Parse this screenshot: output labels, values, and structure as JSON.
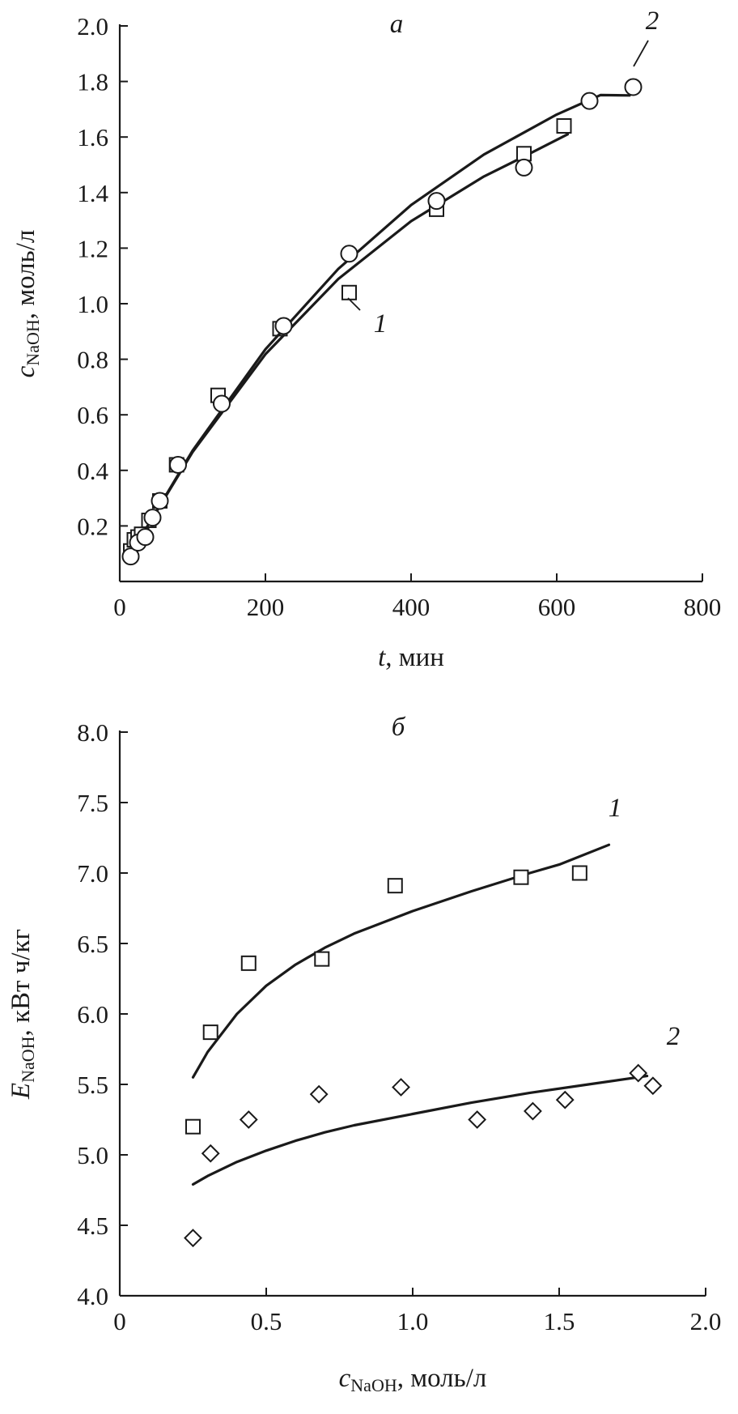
{
  "chart_data": [
    {
      "type": "scatter",
      "panel_label": "а",
      "xlabel": {
        "main": "t",
        "rest": ", мин"
      },
      "ylabel": {
        "main": "c",
        "sub": "NaOH",
        "rest": ", моль/л"
      },
      "xlim": [
        0,
        800
      ],
      "ylim": [
        0,
        2.0
      ],
      "x_ticks": [
        0,
        200,
        400,
        600,
        800
      ],
      "y_ticks": [
        0.2,
        0.4,
        0.6,
        0.8,
        1.0,
        1.2,
        1.4,
        1.6,
        1.8,
        2.0
      ],
      "x_tick_labels": [
        "0",
        "200",
        "400",
        "600",
        "800"
      ],
      "y_tick_labels": [
        "0.2",
        "0.4",
        "0.6",
        "0.8",
        "1.0",
        "1.2",
        "1.4",
        "1.6",
        "1.8",
        "2.0"
      ],
      "grid": false,
      "series": [
        {
          "name": "1",
          "marker": "square",
          "points": [
            [
              15,
              0.11
            ],
            [
              20,
              0.15
            ],
            [
              25,
              0.16
            ],
            [
              30,
              0.17
            ],
            [
              40,
              0.22
            ],
            [
              55,
              0.29
            ],
            [
              78,
              0.42
            ],
            [
              135,
              0.67
            ],
            [
              220,
              0.91
            ],
            [
              315,
              1.04
            ],
            [
              435,
              1.34
            ],
            [
              555,
              1.54
            ],
            [
              610,
              1.64
            ]
          ],
          "fit": [
            [
              20,
              0.12
            ],
            [
              100,
              0.466
            ],
            [
              200,
              0.818
            ],
            [
              300,
              1.089
            ],
            [
              400,
              1.297
            ],
            [
              500,
              1.458
            ],
            [
              550,
              1.523
            ],
            [
              615,
              1.61
            ]
          ]
        },
        {
          "name": "2",
          "marker": "circle",
          "points": [
            [
              15,
              0.09
            ],
            [
              25,
              0.14
            ],
            [
              35,
              0.16
            ],
            [
              45,
              0.23
            ],
            [
              55,
              0.29
            ],
            [
              80,
              0.42
            ],
            [
              140,
              0.64
            ],
            [
              225,
              0.92
            ],
            [
              315,
              1.18
            ],
            [
              435,
              1.37
            ],
            [
              555,
              1.49
            ],
            [
              645,
              1.73
            ],
            [
              705,
              1.78
            ]
          ],
          "fit": [
            [
              20,
              0.12
            ],
            [
              100,
              0.471
            ],
            [
              200,
              0.836
            ],
            [
              300,
              1.125
            ],
            [
              400,
              1.355
            ],
            [
              500,
              1.537
            ],
            [
              600,
              1.681
            ],
            [
              660,
              1.751
            ],
            [
              700,
              1.75
            ]
          ]
        }
      ],
      "annotations": [
        {
          "text": "1",
          "series": "1"
        },
        {
          "text": "2",
          "series": "2"
        }
      ]
    },
    {
      "type": "scatter",
      "panel_label": "б",
      "xlabel": {
        "main": "c",
        "sub": "NaOH",
        "rest": ", моль/л"
      },
      "ylabel": {
        "main": "E",
        "sub": "NaOH",
        "rest": ", кВт ч/кг"
      },
      "xlim": [
        0,
        2.0
      ],
      "ylim": [
        4.0,
        8.0
      ],
      "x_ticks": [
        0,
        0.5,
        1.0,
        1.5,
        2.0
      ],
      "y_ticks": [
        4.0,
        4.5,
        5.0,
        5.5,
        6.0,
        6.5,
        7.0,
        7.5,
        8.0
      ],
      "x_tick_labels": [
        "0",
        "0.5",
        "1.0",
        "1.5",
        "2.0"
      ],
      "y_tick_labels": [
        "4.0",
        "4.5",
        "5.0",
        "5.5",
        "6.0",
        "6.5",
        "7.0",
        "7.5",
        "8.0"
      ],
      "grid": false,
      "series": [
        {
          "name": "1",
          "marker": "square",
          "points": [
            [
              0.25,
              5.2
            ],
            [
              0.31,
              5.87
            ],
            [
              0.44,
              6.36
            ],
            [
              0.69,
              6.39
            ],
            [
              0.94,
              6.91
            ],
            [
              1.37,
              6.97
            ],
            [
              1.57,
              7.0
            ]
          ],
          "fit": [
            [
              0.25,
              5.55
            ],
            [
              0.3,
              5.73
            ],
            [
              0.4,
              6.0
            ],
            [
              0.5,
              6.2
            ],
            [
              0.6,
              6.35
            ],
            [
              0.7,
              6.47
            ],
            [
              0.8,
              6.57
            ],
            [
              0.9,
              6.65
            ],
            [
              1.0,
              6.73
            ],
            [
              1.2,
              6.87
            ],
            [
              1.4,
              7.0
            ],
            [
              1.5,
              7.06
            ],
            [
              1.67,
              7.2
            ]
          ]
        },
        {
          "name": "2",
          "marker": "diamond",
          "points": [
            [
              0.25,
              4.41
            ],
            [
              0.31,
              5.01
            ],
            [
              0.44,
              5.25
            ],
            [
              0.68,
              5.43
            ],
            [
              0.96,
              5.48
            ],
            [
              1.22,
              5.25
            ],
            [
              1.41,
              5.31
            ],
            [
              1.52,
              5.39
            ],
            [
              1.77,
              5.58
            ],
            [
              1.82,
              5.49
            ]
          ],
          "fit": [
            [
              0.25,
              4.79
            ],
            [
              0.3,
              4.85
            ],
            [
              0.4,
              4.95
            ],
            [
              0.5,
              5.03
            ],
            [
              0.6,
              5.1
            ],
            [
              0.7,
              5.16
            ],
            [
              0.8,
              5.21
            ],
            [
              1.0,
              5.29
            ],
            [
              1.2,
              5.37
            ],
            [
              1.4,
              5.44
            ],
            [
              1.6,
              5.5
            ],
            [
              1.8,
              5.56
            ]
          ]
        }
      ],
      "annotations": [
        {
          "text": "1",
          "series": "1"
        },
        {
          "text": "2",
          "series": "2"
        }
      ]
    }
  ]
}
